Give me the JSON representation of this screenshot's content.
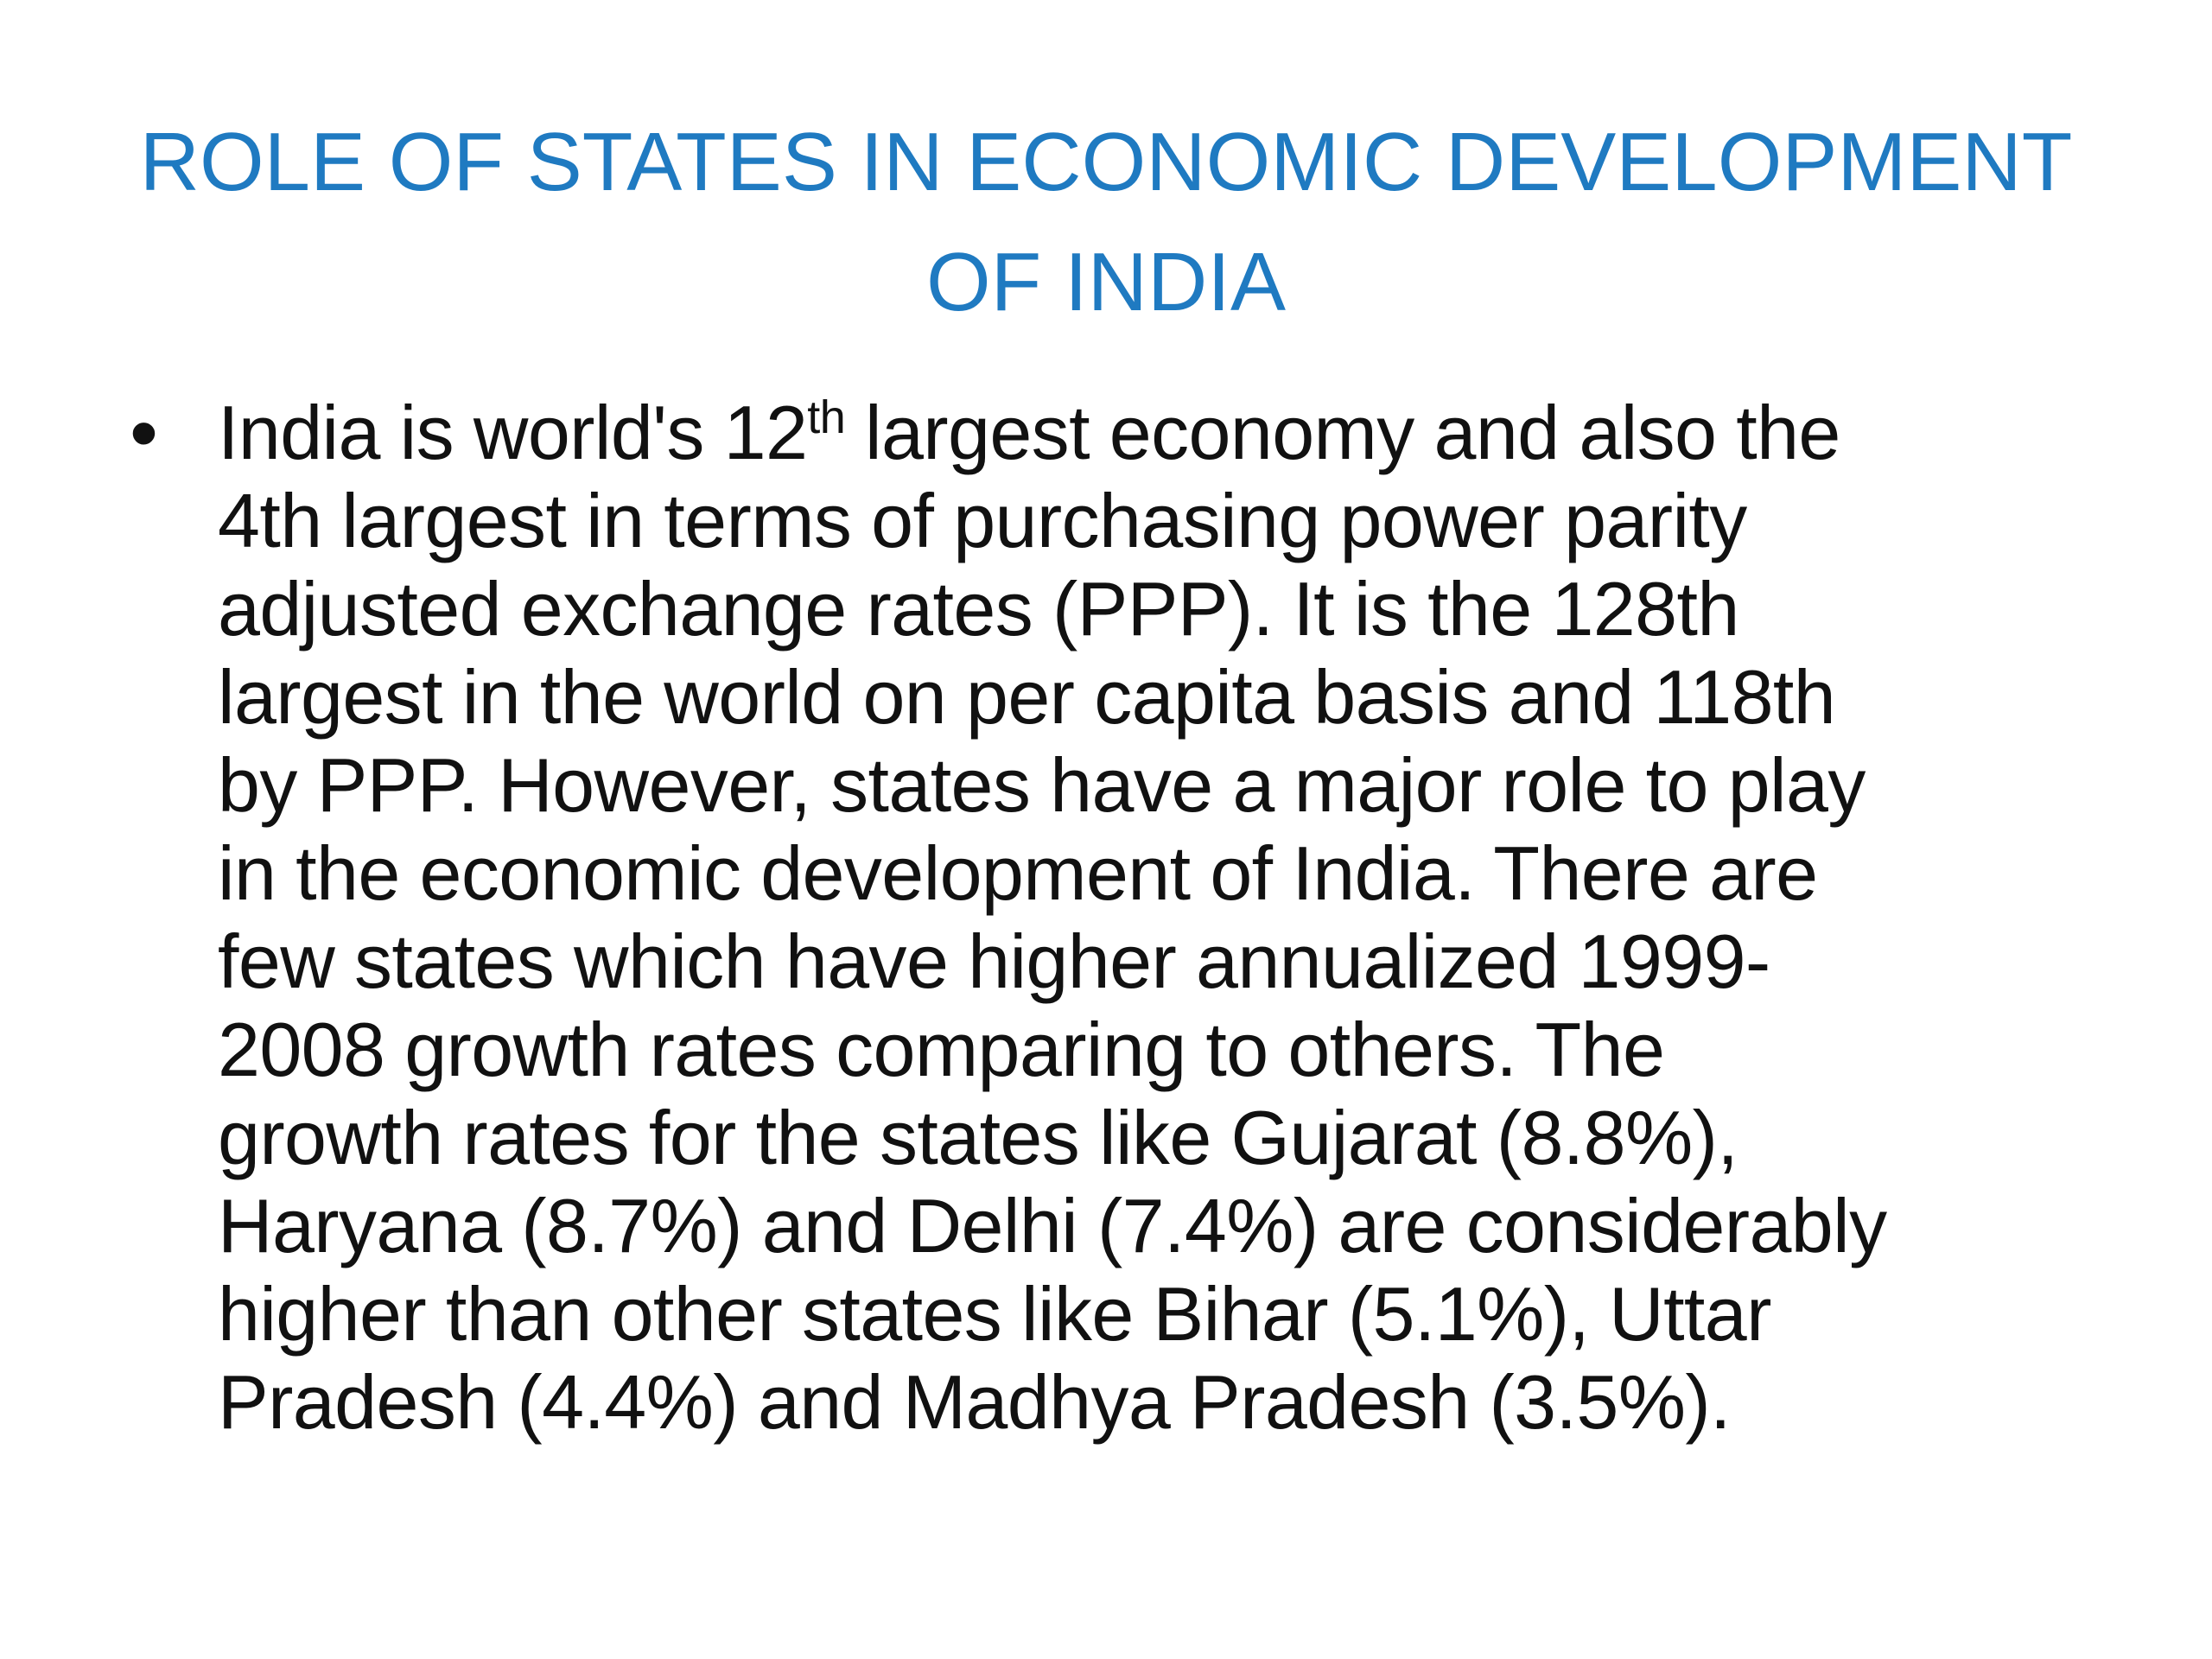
{
  "slide": {
    "title_lines": [
      "ROLE OF STATES IN ECONOMIC DEVELOPMENT",
      "OF INDIA"
    ],
    "bullet": {
      "line1_a": "India is world's 12",
      "line1_sup": "th",
      "line1_b": " largest economy and also the",
      "lines": [
        "4th largest in terms of purchasing power parity",
        "adjusted exchange rates (PPP). It is the 128th",
        "largest in the world on per capita basis and 118th",
        "by PPP. However, states have a major role to play",
        "in the economic development of India. There are",
        "few states which have higher annualized 1999-",
        "2008 growth rates comparing to others. The",
        "growth rates for the states like Gujarat (8.8%),",
        "Haryana (8.7%) and Delhi (7.4%) are considerably",
        "higher than other states like Bihar (5.1%), Uttar",
        "Pradesh (4.4%) and Madhya Pradesh (3.5%)."
      ]
    },
    "colors": {
      "title": "#1f7ac1",
      "text": "#111111",
      "background": "#ffffff"
    }
  }
}
